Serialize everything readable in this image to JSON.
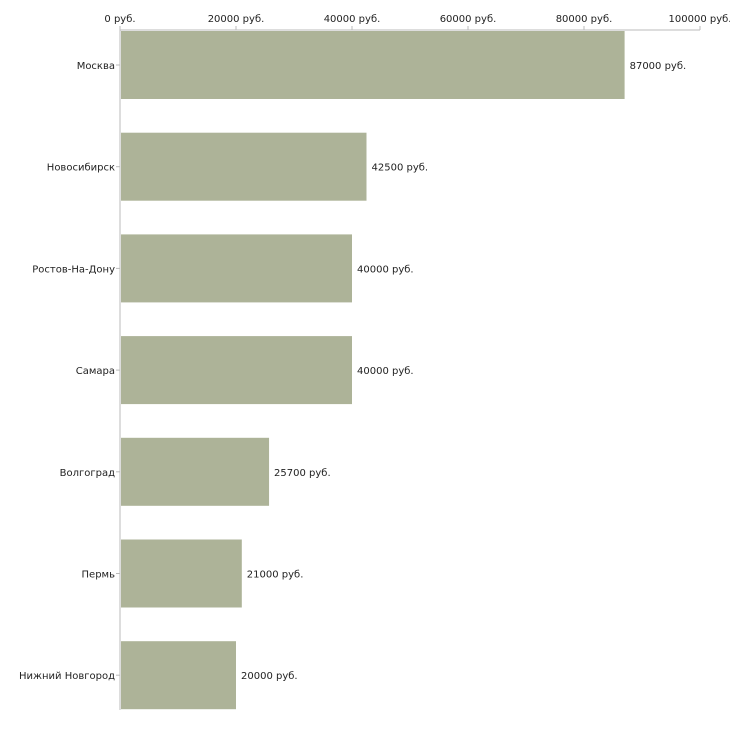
{
  "chart_data": {
    "type": "bar",
    "orientation": "horizontal",
    "title": "",
    "xlabel": "",
    "ylabel": "",
    "categories": [
      "Москва",
      "Новосибирск",
      "Ростов-На-Дону",
      "Самара",
      "Волгоград",
      "Пермь",
      "Нижний Новгород"
    ],
    "values": [
      87000,
      42500,
      40000,
      40000,
      25700,
      21000,
      20000
    ],
    "value_labels": [
      "87000 руб.",
      "42500 руб.",
      "40000 руб.",
      "40000 руб.",
      "25700 руб.",
      "21000 руб.",
      "20000 руб."
    ],
    "xlim": [
      0,
      100000
    ],
    "ticks": [
      0,
      20000,
      40000,
      60000,
      80000,
      100000
    ],
    "tick_labels": [
      "0 руб.",
      "20000 руб.",
      "40000 руб.",
      "60000 руб.",
      "80000 руб.",
      "100000 руб."
    ],
    "axis_position": "top",
    "grid": false,
    "legend": "none",
    "colors": {
      "bar": "#adb398",
      "axis": "#bbbbbb",
      "text": "#222222"
    }
  }
}
